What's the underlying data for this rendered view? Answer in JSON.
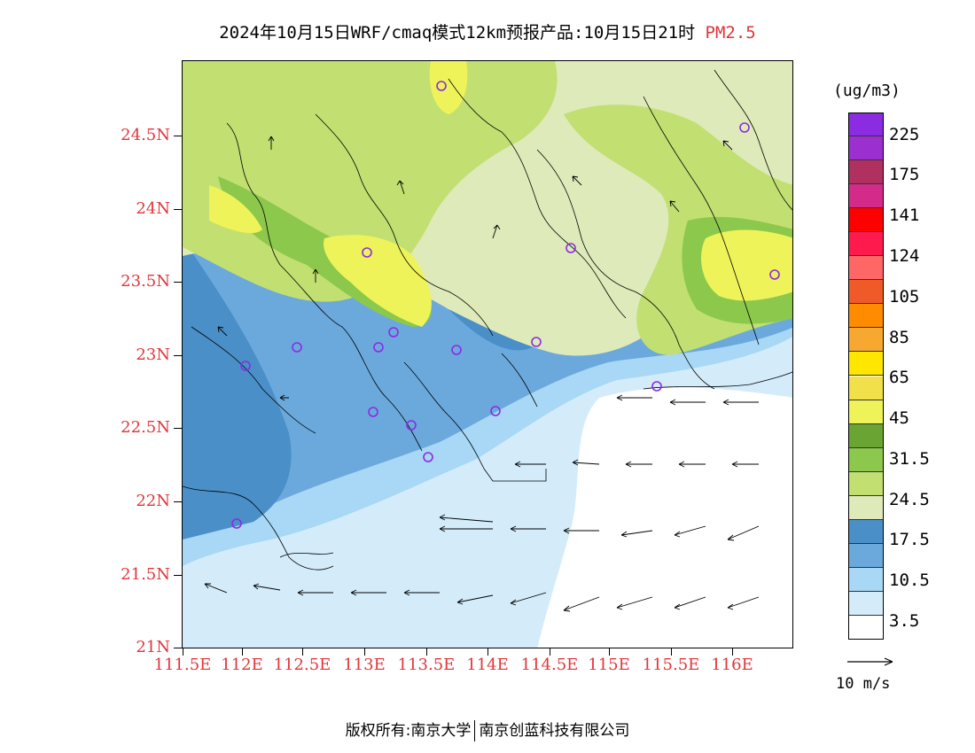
{
  "header": {
    "title": "2024年10月15日WRF/cmaq模式12km预报产品:10月15日21时",
    "pollutant": "PM2.5"
  },
  "axes": {
    "lat_labels": [
      "24.5N",
      "24N",
      "23.5N",
      "23N",
      "22.5N",
      "22N",
      "21.5N",
      "21N"
    ],
    "lon_labels": [
      "111.5E",
      "112E",
      "112.5E",
      "113E",
      "113.5E",
      "114E",
      "114.5E",
      "115E",
      "115.5E",
      "116E"
    ]
  },
  "legend": {
    "unit": "(ug/m3)",
    "labels": [
      "225",
      "175",
      "141",
      "124",
      "105",
      "85",
      "65",
      "45",
      "31.5",
      "24.5",
      "17.5",
      "10.5",
      "3.5"
    ],
    "colors": [
      "#8b2be2",
      "#9c2fd0",
      "#b03060",
      "#d42a8a",
      "#ff0000",
      "#ff1a4d",
      "#ff6666",
      "#f05a28",
      "#ff8c00",
      "#f7a830",
      "#ffe600",
      "#f2e04a",
      "#eef35a",
      "#6aa534",
      "#8cc84b",
      "#c2df72",
      "#dfeaba",
      "#4a8fc7",
      "#6ba9dd",
      "#a8d8f5",
      "#d4ecfa",
      "#ffffff"
    ],
    "vector_label": "10 m/s",
    "icons": [
      "wind-arrow-icon",
      "station-circle-icon"
    ]
  },
  "footer": {
    "copyright_left": "版权所有:南京大学",
    "copyright_right": "南京创蓝科技有限公司"
  }
}
